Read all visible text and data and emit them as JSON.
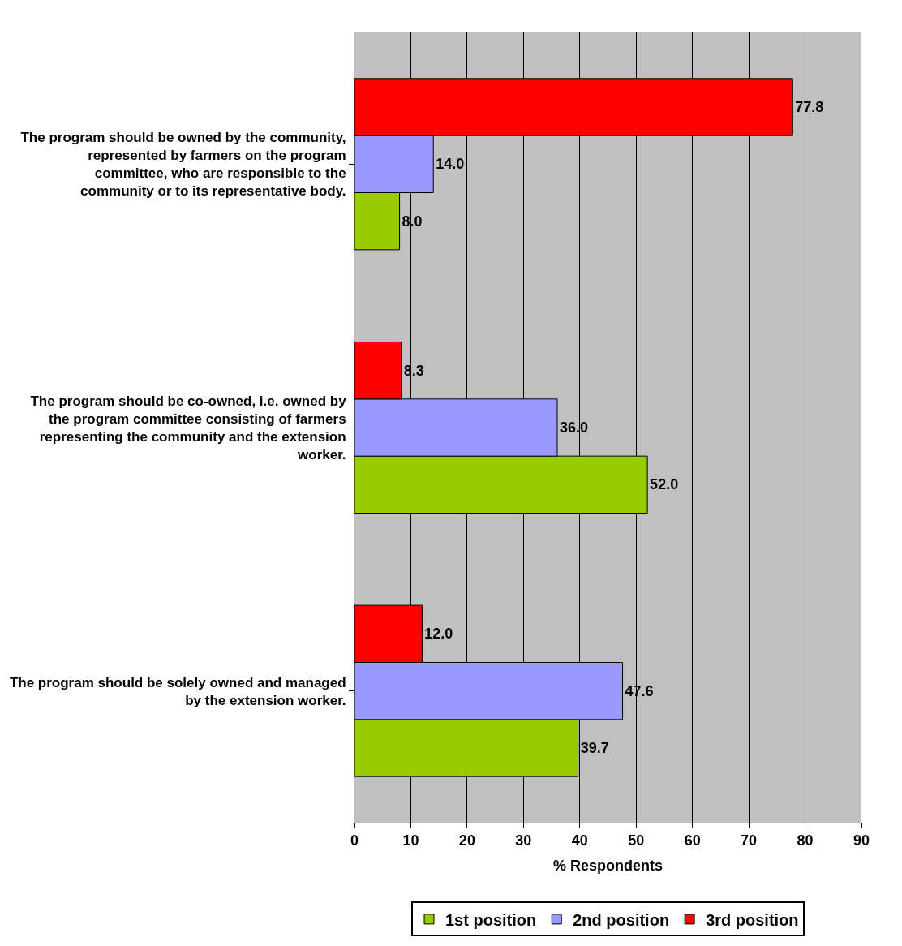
{
  "chart_data": {
    "type": "bar",
    "orientation": "horizontal",
    "xlabel": "% Respondents",
    "categories": [
      "The program should be owned by the community,  represented by farmers on the program committee, who are responsible to the community or to its representative body.",
      "The program should be co-owned, i.e. owned by the program committee consisting of farmers representing the community and the extension worker.",
      "The program should be solely owned and managed by the extension worker."
    ],
    "series": [
      {
        "name": "1st position",
        "color": "#99cc00",
        "values": [
          8.0,
          52.0,
          39.7
        ],
        "value_labels": [
          "8.0",
          "52.0",
          "39.7"
        ]
      },
      {
        "name": "2nd position",
        "color": "#9999ff",
        "values": [
          14.0,
          36.0,
          47.6
        ],
        "value_labels": [
          "14.0",
          "36.0",
          "47.6"
        ]
      },
      {
        "name": "3rd position",
        "color": "#ff0000",
        "values": [
          77.8,
          8.3,
          12.0
        ],
        "value_labels": [
          "77.8",
          "8.3",
          "12.0"
        ]
      }
    ],
    "xlim": [
      0,
      90
    ],
    "xticks": [
      0,
      10,
      20,
      30,
      40,
      50,
      60,
      70,
      80,
      90
    ],
    "grid": "x",
    "legend": "bottom"
  }
}
